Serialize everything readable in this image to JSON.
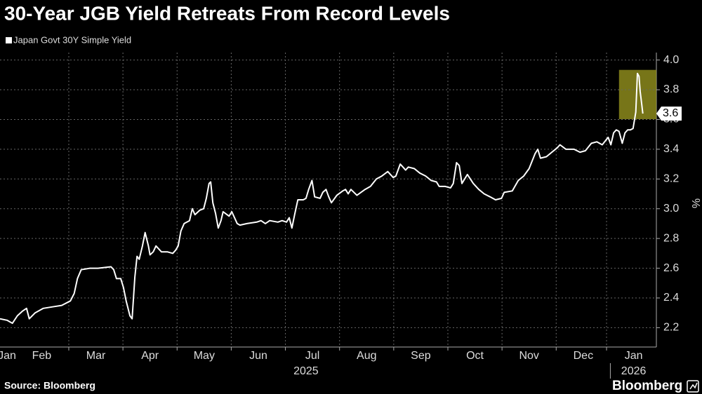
{
  "chart_data": {
    "type": "line",
    "title": "30-Year JGB Yield Retreats From Record Levels",
    "source": "Source: Bloomberg",
    "brand": "Bloomberg",
    "ylabel": "%",
    "end_label": "3.6",
    "grid": true,
    "highlight": true,
    "highlight_color": "#8c8a1c",
    "xlim": [
      0.73,
      12.85
    ],
    "ylim": [
      2.07,
      4.05
    ],
    "yticks": [
      2.2,
      2.4,
      2.6,
      2.8,
      {
        "value": 3,
        "label": "3.0"
      },
      3.2,
      3.4,
      3.6,
      3.8,
      {
        "value": 4,
        "label": "4.0"
      }
    ],
    "xticks": [
      {
        "value": 0.86,
        "label": "Jan"
      },
      {
        "value": 1.5,
        "label": "Feb"
      },
      {
        "value": 2.5,
        "label": "Mar"
      },
      {
        "value": 3.5,
        "label": "Apr"
      },
      {
        "value": 4.5,
        "label": "May"
      },
      {
        "value": 5.5,
        "label": "Jun"
      },
      {
        "value": 6.5,
        "label": "Jul"
      },
      {
        "value": 7.5,
        "label": "Aug"
      },
      {
        "value": 8.5,
        "label": "Sep"
      },
      {
        "value": 9.5,
        "label": "Oct"
      },
      {
        "value": 10.5,
        "label": "Nov"
      },
      {
        "value": 11.5,
        "label": "Dec"
      },
      {
        "value": 12.43,
        "label": "Jan"
      }
    ],
    "year_ticks": [
      {
        "value": 6.38,
        "label": "2025"
      },
      {
        "value": 12.43,
        "label": "2026"
      }
    ],
    "x": [
      0.73,
      0.86,
      0.96,
      1.05,
      1.14,
      1.22,
      1.27,
      1.38,
      1.53,
      1.7,
      1.87,
      2.03,
      2.1,
      2.16,
      2.23,
      2.39,
      2.54,
      2.78,
      2.83,
      2.88,
      2.96,
      3.01,
      3.06,
      3.13,
      3.17,
      3.22,
      3.26,
      3.3,
      3.36,
      3.41,
      3.47,
      3.5,
      3.56,
      3.61,
      3.71,
      3.82,
      3.92,
      3.97,
      4.02,
      4.07,
      4.13,
      4.23,
      4.28,
      4.33,
      4.42,
      4.49,
      4.54,
      4.59,
      4.62,
      4.66,
      4.71,
      4.76,
      4.81,
      4.85,
      4.96,
      5.01,
      5.11,
      5.16,
      5.29,
      5.47,
      5.55,
      5.63,
      5.71,
      5.86,
      5.94,
      6.02,
      6.07,
      6.12,
      6.17,
      6.23,
      6.33,
      6.38,
      6.43,
      6.49,
      6.54,
      6.64,
      6.69,
      6.75,
      6.8,
      6.85,
      6.95,
      7.06,
      7.11,
      7.16,
      7.21,
      7.32,
      7.47,
      7.57,
      7.68,
      7.78,
      7.89,
      7.94,
      7.99,
      8.04,
      8.12,
      8.17,
      8.22,
      8.27,
      8.38,
      8.48,
      8.59,
      8.69,
      8.79,
      8.84,
      8.95,
      9.05,
      9.1,
      9.16,
      9.21,
      9.26,
      9.36,
      9.47,
      9.57,
      9.67,
      9.78,
      9.88,
      9.99,
      10.04,
      10.19,
      10.3,
      10.4,
      10.5,
      10.61,
      10.66,
      10.71,
      10.82,
      10.92,
      11.02,
      11.07,
      11.18,
      11.33,
      11.44,
      11.54,
      11.65,
      11.75,
      11.85,
      11.96,
      12.01,
      12.06,
      12.11,
      12.16,
      12.22,
      12.27,
      12.32,
      12.37,
      12.42,
      12.47,
      12.5,
      12.53,
      12.55,
      12.58,
      12.6
    ],
    "series": [
      {
        "name": "Japan Govt 30Y Simple Yield",
        "color": "#ffffff",
        "values": [
          2.26,
          2.25,
          2.23,
          2.28,
          2.31,
          2.33,
          2.26,
          2.3,
          2.33,
          2.34,
          2.35,
          2.38,
          2.43,
          2.53,
          2.59,
          2.6,
          2.6,
          2.61,
          2.59,
          2.53,
          2.53,
          2.47,
          2.38,
          2.28,
          2.26,
          2.54,
          2.68,
          2.66,
          2.75,
          2.84,
          2.75,
          2.69,
          2.71,
          2.75,
          2.71,
          2.71,
          2.7,
          2.72,
          2.75,
          2.85,
          2.9,
          2.92,
          3.0,
          2.96,
          2.99,
          3.0,
          3.07,
          3.17,
          3.18,
          3.04,
          2.97,
          2.87,
          2.92,
          2.98,
          2.95,
          2.98,
          2.9,
          2.89,
          2.9,
          2.91,
          2.92,
          2.9,
          2.92,
          2.91,
          2.92,
          2.91,
          2.94,
          2.87,
          2.96,
          3.06,
          3.06,
          3.07,
          3.13,
          3.19,
          3.08,
          3.07,
          3.11,
          3.13,
          3.08,
          3.04,
          3.09,
          3.12,
          3.13,
          3.1,
          3.13,
          3.09,
          3.13,
          3.15,
          3.2,
          3.22,
          3.25,
          3.23,
          3.21,
          3.22,
          3.3,
          3.28,
          3.26,
          3.28,
          3.27,
          3.24,
          3.22,
          3.19,
          3.18,
          3.15,
          3.15,
          3.14,
          3.17,
          3.31,
          3.29,
          3.17,
          3.23,
          3.17,
          3.13,
          3.1,
          3.08,
          3.06,
          3.07,
          3.11,
          3.12,
          3.19,
          3.22,
          3.27,
          3.37,
          3.4,
          3.34,
          3.35,
          3.38,
          3.41,
          3.43,
          3.4,
          3.4,
          3.38,
          3.39,
          3.44,
          3.45,
          3.43,
          3.48,
          3.43,
          3.51,
          3.53,
          3.52,
          3.44,
          3.51,
          3.53,
          3.53,
          3.54,
          3.65,
          3.91,
          3.89,
          3.79,
          3.7,
          3.64
        ]
      }
    ]
  }
}
